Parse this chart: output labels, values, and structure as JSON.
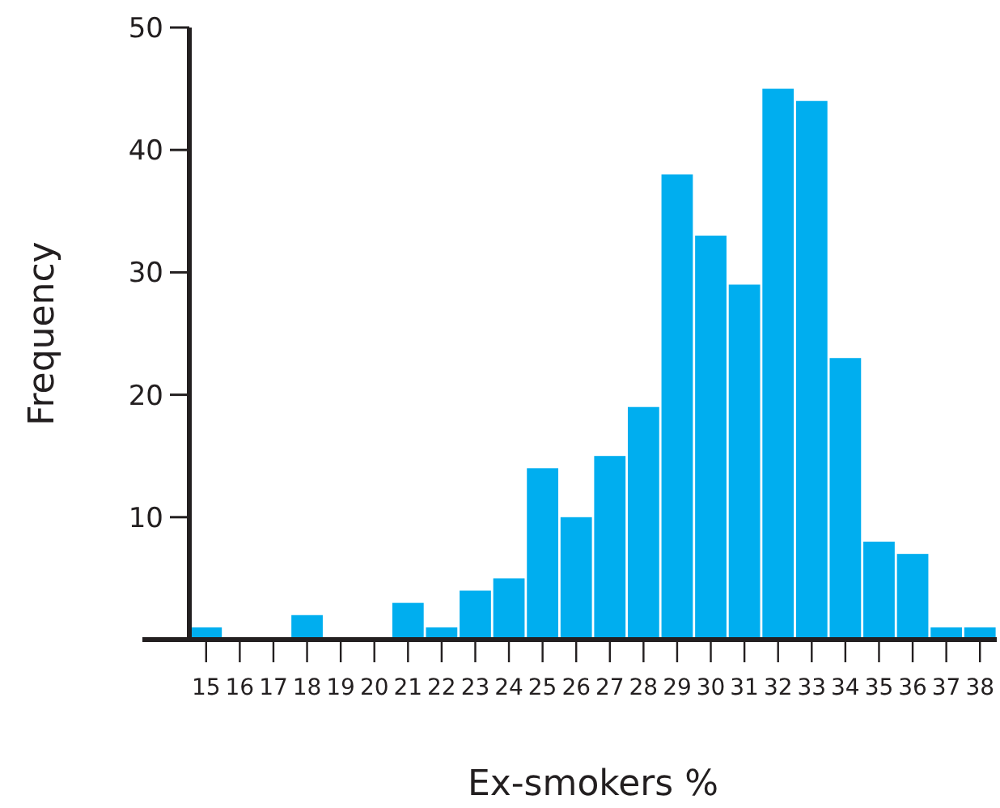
{
  "chart_data": {
    "type": "histogram",
    "xlabel": "Ex-smokers %",
    "ylabel": "Frequency",
    "bins": [
      14.5,
      15.5,
      16.5,
      17.5,
      18.5,
      19.5,
      20.5,
      21.5,
      22.5,
      23.5,
      24.5,
      25.5,
      26.5,
      27.5,
      28.5,
      29.5,
      30.5,
      31.5,
      32.5,
      33.5,
      34.5,
      35.5,
      36.5,
      37.5,
      38.5
    ],
    "values": [
      1,
      0,
      0,
      2,
      0,
      0,
      3,
      1,
      4,
      5,
      14,
      10,
      15,
      19,
      38,
      33,
      29,
      45,
      44,
      23,
      8,
      7,
      1,
      1
    ],
    "color": "#00aeef",
    "xlim": [
      14.5,
      38.5
    ],
    "xticks": [
      15,
      16,
      17,
      18,
      19,
      20,
      21,
      22,
      23,
      24,
      25,
      26,
      27,
      28,
      29,
      30,
      31,
      32,
      33,
      34,
      35,
      36,
      37,
      38
    ],
    "ylim": [
      0,
      50
    ],
    "yticks": [
      10,
      20,
      30,
      40,
      50
    ],
    "grid": false
  }
}
